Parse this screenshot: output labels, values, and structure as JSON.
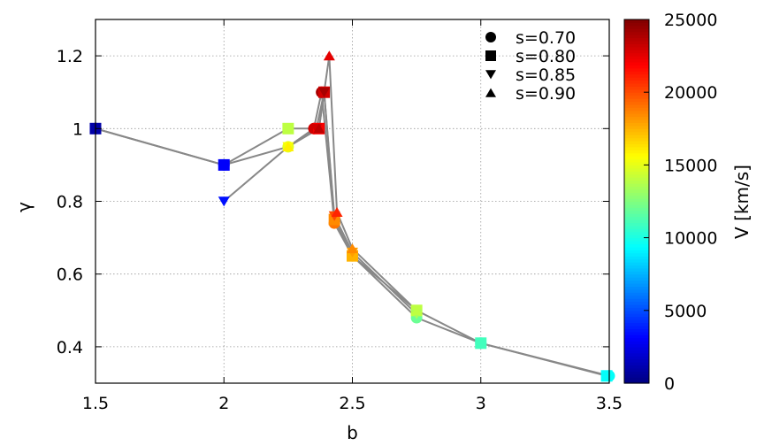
{
  "chart_data": {
    "type": "scatter",
    "title": "",
    "xlabel": "b",
    "ylabel": "γ",
    "xlim": [
      1.5,
      3.5
    ],
    "ylim": [
      0.3,
      1.3
    ],
    "x_ticks": [
      1.5,
      2,
      2.5,
      3,
      3.5
    ],
    "x_tick_labels": [
      "1.5",
      "2",
      "2.5",
      "3",
      "3.5"
    ],
    "y_ticks": [
      0.4,
      0.6,
      0.8,
      1.0,
      1.2
    ],
    "y_tick_labels": [
      "0.4",
      "0.6",
      "0.8",
      "1",
      "1.2"
    ],
    "grid": true,
    "legend_position": "top-right",
    "colorbar": {
      "label": "V [km/s]",
      "range": [
        0,
        25000
      ],
      "ticks": [
        0,
        5000,
        10000,
        15000,
        20000,
        25000
      ],
      "tick_labels": [
        "0",
        "5000",
        "10000",
        "15000",
        "20000",
        "25000"
      ],
      "colormap": "jet"
    },
    "series": [
      {
        "name": "s=0.70",
        "marker": "circle",
        "points": [
          {
            "b": 1.5,
            "gamma": 1.0,
            "V": 1000
          },
          {
            "b": 2.0,
            "gamma": 0.9,
            "V": 4000
          },
          {
            "b": 2.25,
            "gamma": 0.95,
            "V": 15000
          },
          {
            "b": 2.35,
            "gamma": 1.0,
            "V": 23000
          },
          {
            "b": 2.38,
            "gamma": 1.1,
            "V": 24000
          },
          {
            "b": 2.43,
            "gamma": 0.74,
            "V": 19000
          },
          {
            "b": 2.5,
            "gamma": 0.65,
            "V": 18000
          },
          {
            "b": 2.75,
            "gamma": 0.48,
            "V": 12000
          },
          {
            "b": 3.0,
            "gamma": 0.41,
            "V": 11000
          },
          {
            "b": 3.5,
            "gamma": 0.32,
            "V": 9500
          }
        ]
      },
      {
        "name": "s=0.80",
        "marker": "square",
        "points": [
          {
            "b": 1.5,
            "gamma": 1.0,
            "V": 1000
          },
          {
            "b": 2.0,
            "gamma": 0.9,
            "V": 3000
          },
          {
            "b": 2.25,
            "gamma": 1.0,
            "V": 14000
          },
          {
            "b": 2.37,
            "gamma": 1.0,
            "V": 22000
          },
          {
            "b": 2.39,
            "gamma": 1.1,
            "V": 23000
          },
          {
            "b": 2.43,
            "gamma": 0.75,
            "V": 18500
          },
          {
            "b": 2.5,
            "gamma": 0.65,
            "V": 17500
          },
          {
            "b": 2.75,
            "gamma": 0.5,
            "V": 14000
          },
          {
            "b": 3.0,
            "gamma": 0.41,
            "V": 11000
          },
          {
            "b": 3.49,
            "gamma": 0.32,
            "V": 9500
          }
        ]
      },
      {
        "name": "s=0.85",
        "marker": "triangle-down",
        "points": [
          {
            "b": 2.0,
            "gamma": 0.8,
            "V": 3500
          },
          {
            "b": 2.25,
            "gamma": 0.95,
            "V": 15500
          },
          {
            "b": 2.36,
            "gamma": 1.0,
            "V": 23000
          },
          {
            "b": 2.39,
            "gamma": 1.1,
            "V": 24000
          },
          {
            "b": 2.43,
            "gamma": 0.76,
            "V": 20000
          },
          {
            "b": 2.5,
            "gamma": 0.66,
            "V": 18000
          },
          {
            "b": 2.75,
            "gamma": 0.49,
            "V": 13500
          }
        ]
      },
      {
        "name": "s=0.90",
        "marker": "triangle-up",
        "points": [
          {
            "b": 2.25,
            "gamma": 0.95,
            "V": 16000
          },
          {
            "b": 2.37,
            "gamma": 1.0,
            "V": 23500
          },
          {
            "b": 2.41,
            "gamma": 1.2,
            "V": 22500
          },
          {
            "b": 2.44,
            "gamma": 0.77,
            "V": 21000
          },
          {
            "b": 2.5,
            "gamma": 0.67,
            "V": 18500
          },
          {
            "b": 2.75,
            "gamma": 0.5,
            "V": 14000
          }
        ]
      }
    ]
  },
  "style": {
    "line_color": "#888888",
    "grid_color": "#999999"
  }
}
